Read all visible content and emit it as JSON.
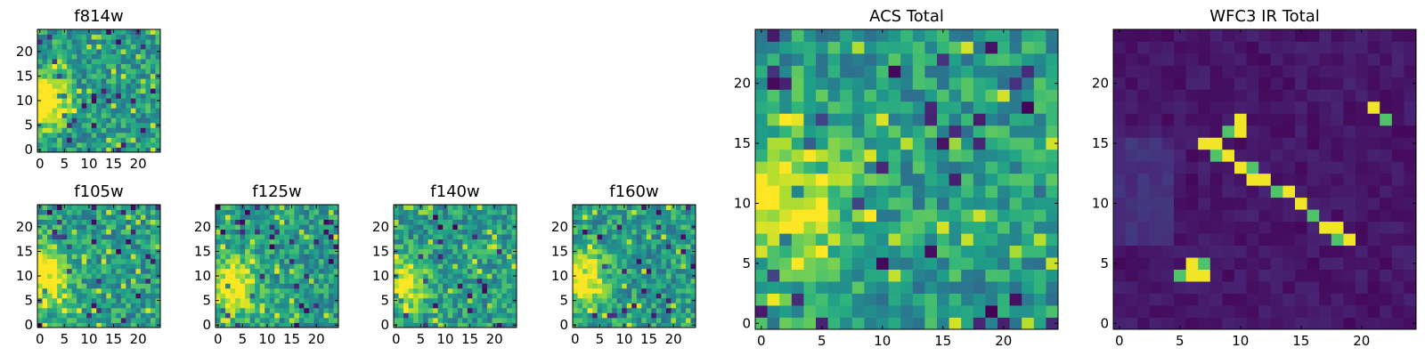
{
  "chart_data": [
    {
      "id": "f814w",
      "type": "heatmap",
      "title": "f814w",
      "colormap": "viridis",
      "grid_size": [
        25,
        25
      ],
      "xlim": [
        0,
        25
      ],
      "ylim": [
        0,
        25
      ],
      "xticks": [
        0,
        5,
        10,
        15,
        20
      ],
      "yticks": [
        0,
        5,
        10,
        15,
        20
      ],
      "pattern": "noise",
      "bright_regions": [
        {
          "x": 1.5,
          "y": 10,
          "sx": 3,
          "sy": 3.5,
          "amp": 0.8
        }
      ]
    },
    {
      "id": "f105w",
      "type": "heatmap",
      "title": "f105w",
      "colormap": "viridis",
      "grid_size": [
        25,
        25
      ],
      "xlim": [
        0,
        25
      ],
      "ylim": [
        0,
        25
      ],
      "xticks": [
        0,
        5,
        10,
        15,
        20
      ],
      "yticks": [
        0,
        5,
        10,
        15,
        20
      ],
      "pattern": "noise",
      "bright_regions": [
        {
          "x": 1.5,
          "y": 10,
          "sx": 3,
          "sy": 4.5,
          "amp": 0.7
        }
      ]
    },
    {
      "id": "f125w",
      "type": "heatmap",
      "title": "f125w",
      "colormap": "viridis",
      "grid_size": [
        25,
        25
      ],
      "xlim": [
        0,
        25
      ],
      "ylim": [
        0,
        25
      ],
      "xticks": [
        0,
        5,
        10,
        15,
        20
      ],
      "yticks": [
        0,
        5,
        10,
        15,
        20
      ],
      "pattern": "noise",
      "bright_regions": [
        {
          "x": 3,
          "y": 8,
          "sx": 3.5,
          "sy": 4,
          "amp": 0.6
        }
      ]
    },
    {
      "id": "f140w",
      "type": "heatmap",
      "title": "f140w",
      "colormap": "viridis",
      "grid_size": [
        25,
        25
      ],
      "xlim": [
        0,
        25
      ],
      "ylim": [
        0,
        25
      ],
      "xticks": [
        0,
        5,
        10,
        15,
        20
      ],
      "yticks": [
        0,
        5,
        10,
        15,
        20
      ],
      "pattern": "noise",
      "bright_regions": [
        {
          "x": 1.5,
          "y": 8,
          "sx": 3,
          "sy": 3.5,
          "amp": 0.6
        }
      ]
    },
    {
      "id": "f160w",
      "type": "heatmap",
      "title": "f160w",
      "colormap": "viridis",
      "grid_size": [
        25,
        25
      ],
      "xlim": [
        0,
        25
      ],
      "ylim": [
        0,
        25
      ],
      "xticks": [
        0,
        5,
        10,
        15,
        20
      ],
      "yticks": [
        0,
        5,
        10,
        15,
        20
      ],
      "pattern": "noise",
      "bright_regions": [
        {
          "x": 2,
          "y": 9,
          "sx": 3,
          "sy": 4,
          "amp": 0.6
        }
      ]
    },
    {
      "id": "acs_total",
      "type": "heatmap",
      "title": "ACS Total",
      "colormap": "viridis",
      "grid_size": [
        25,
        25
      ],
      "xlim": [
        0,
        25
      ],
      "ylim": [
        0,
        25
      ],
      "xticks": [
        0,
        5,
        10,
        15,
        20
      ],
      "yticks": [
        0,
        5,
        10,
        15,
        20
      ],
      "pattern": "noise",
      "bright_regions": [
        {
          "x": 2.5,
          "y": 10,
          "sx": 3.5,
          "sy": 4,
          "amp": 0.5
        }
      ]
    },
    {
      "id": "wfc3_ir_total",
      "type": "heatmap",
      "title": "WFC3 IR Total",
      "colormap": "viridis",
      "grid_size": [
        25,
        25
      ],
      "xlim": [
        0,
        25
      ],
      "ylim": [
        0,
        25
      ],
      "xticks": [
        0,
        5,
        10,
        15,
        20
      ],
      "yticks": [
        0,
        5,
        10,
        15,
        20
      ],
      "pattern": "dark_background",
      "bright_cells": [
        [
          21,
          18
        ],
        [
          22,
          17
        ],
        [
          10,
          17
        ],
        [
          10,
          16
        ],
        [
          9,
          16
        ],
        [
          7,
          15
        ],
        [
          8,
          15
        ],
        [
          8,
          14
        ],
        [
          9,
          14
        ],
        [
          10,
          13
        ],
        [
          11,
          13
        ],
        [
          11,
          12
        ],
        [
          12,
          12
        ],
        [
          13,
          11
        ],
        [
          14,
          11
        ],
        [
          15,
          10
        ],
        [
          16,
          9
        ],
        [
          17,
          8
        ],
        [
          18,
          8
        ],
        [
          18,
          7
        ],
        [
          19,
          7
        ],
        [
          6,
          5
        ],
        [
          7,
          5
        ],
        [
          6,
          4
        ],
        [
          7,
          4
        ],
        [
          5,
          4
        ]
      ]
    }
  ]
}
